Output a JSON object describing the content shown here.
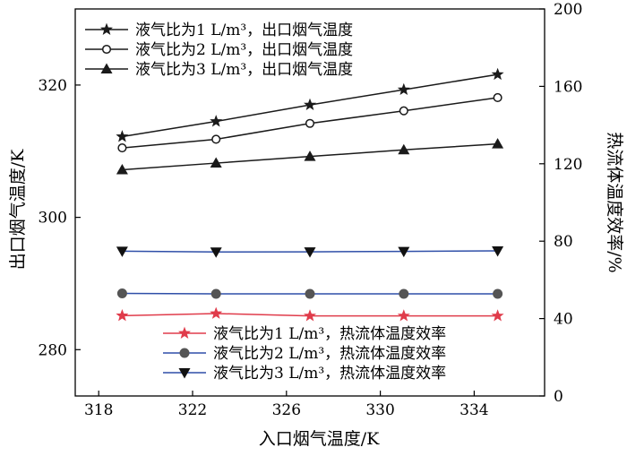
{
  "chart_data": {
    "type": "line",
    "xlabel": "入口烟气温度/K",
    "ylabel_left": "出口烟气温度/K",
    "ylabel_right": "热流体温度效率/%",
    "x": [
      319,
      323,
      327,
      331,
      335
    ],
    "xticks": [
      "318",
      "322",
      "326",
      "330",
      "334"
    ],
    "xlim": [
      317,
      337
    ],
    "ylim_left": [
      273,
      331.5
    ],
    "yticks_left": [
      "280",
      "300",
      "320"
    ],
    "ylim_right": [
      0,
      200
    ],
    "yticks_right": [
      "0",
      "40",
      "80",
      "120",
      "160",
      "200"
    ],
    "series": [
      {
        "name": "液气比为1 L/m³，出口烟气温度",
        "axis": "left",
        "marker": "star",
        "color": "#1a1a1a",
        "values": [
          312.2,
          314.5,
          317.0,
          319.3,
          321.6
        ]
      },
      {
        "name": "液气比为2 L/m³，出口烟气温度",
        "axis": "left",
        "marker": "circle-open",
        "color": "#1a1a1a",
        "values": [
          310.5,
          311.8,
          314.2,
          316.1,
          318.1
        ]
      },
      {
        "name": "液气比为3 L/m³，出口烟气温度",
        "axis": "left",
        "marker": "triangle-up",
        "color": "#1a1a1a",
        "values": [
          307.2,
          308.2,
          309.2,
          310.2,
          311.1
        ]
      },
      {
        "name": "液气比为1 L/m³，热流体温度效率",
        "axis": "right",
        "marker": "star",
        "color": "#e03c4b",
        "values": [
          41.5,
          42.6,
          41.4,
          41.4,
          41.4
        ]
      },
      {
        "name": "液气比为2 L/m³，热流体温度效率",
        "axis": "right",
        "marker": "circle-filled",
        "color": "#2f4fa8",
        "values": [
          53.0,
          52.8,
          52.8,
          52.8,
          52.8
        ]
      },
      {
        "name": "液气比为3 L/m³，热流体温度效率",
        "axis": "right",
        "marker": "triangle-down",
        "color": "#2f4fa8",
        "values": [
          74.8,
          74.4,
          74.5,
          74.7,
          75.0
        ]
      }
    ],
    "legend_placement": [
      "top-left",
      "bottom-right"
    ],
    "grid": false
  }
}
